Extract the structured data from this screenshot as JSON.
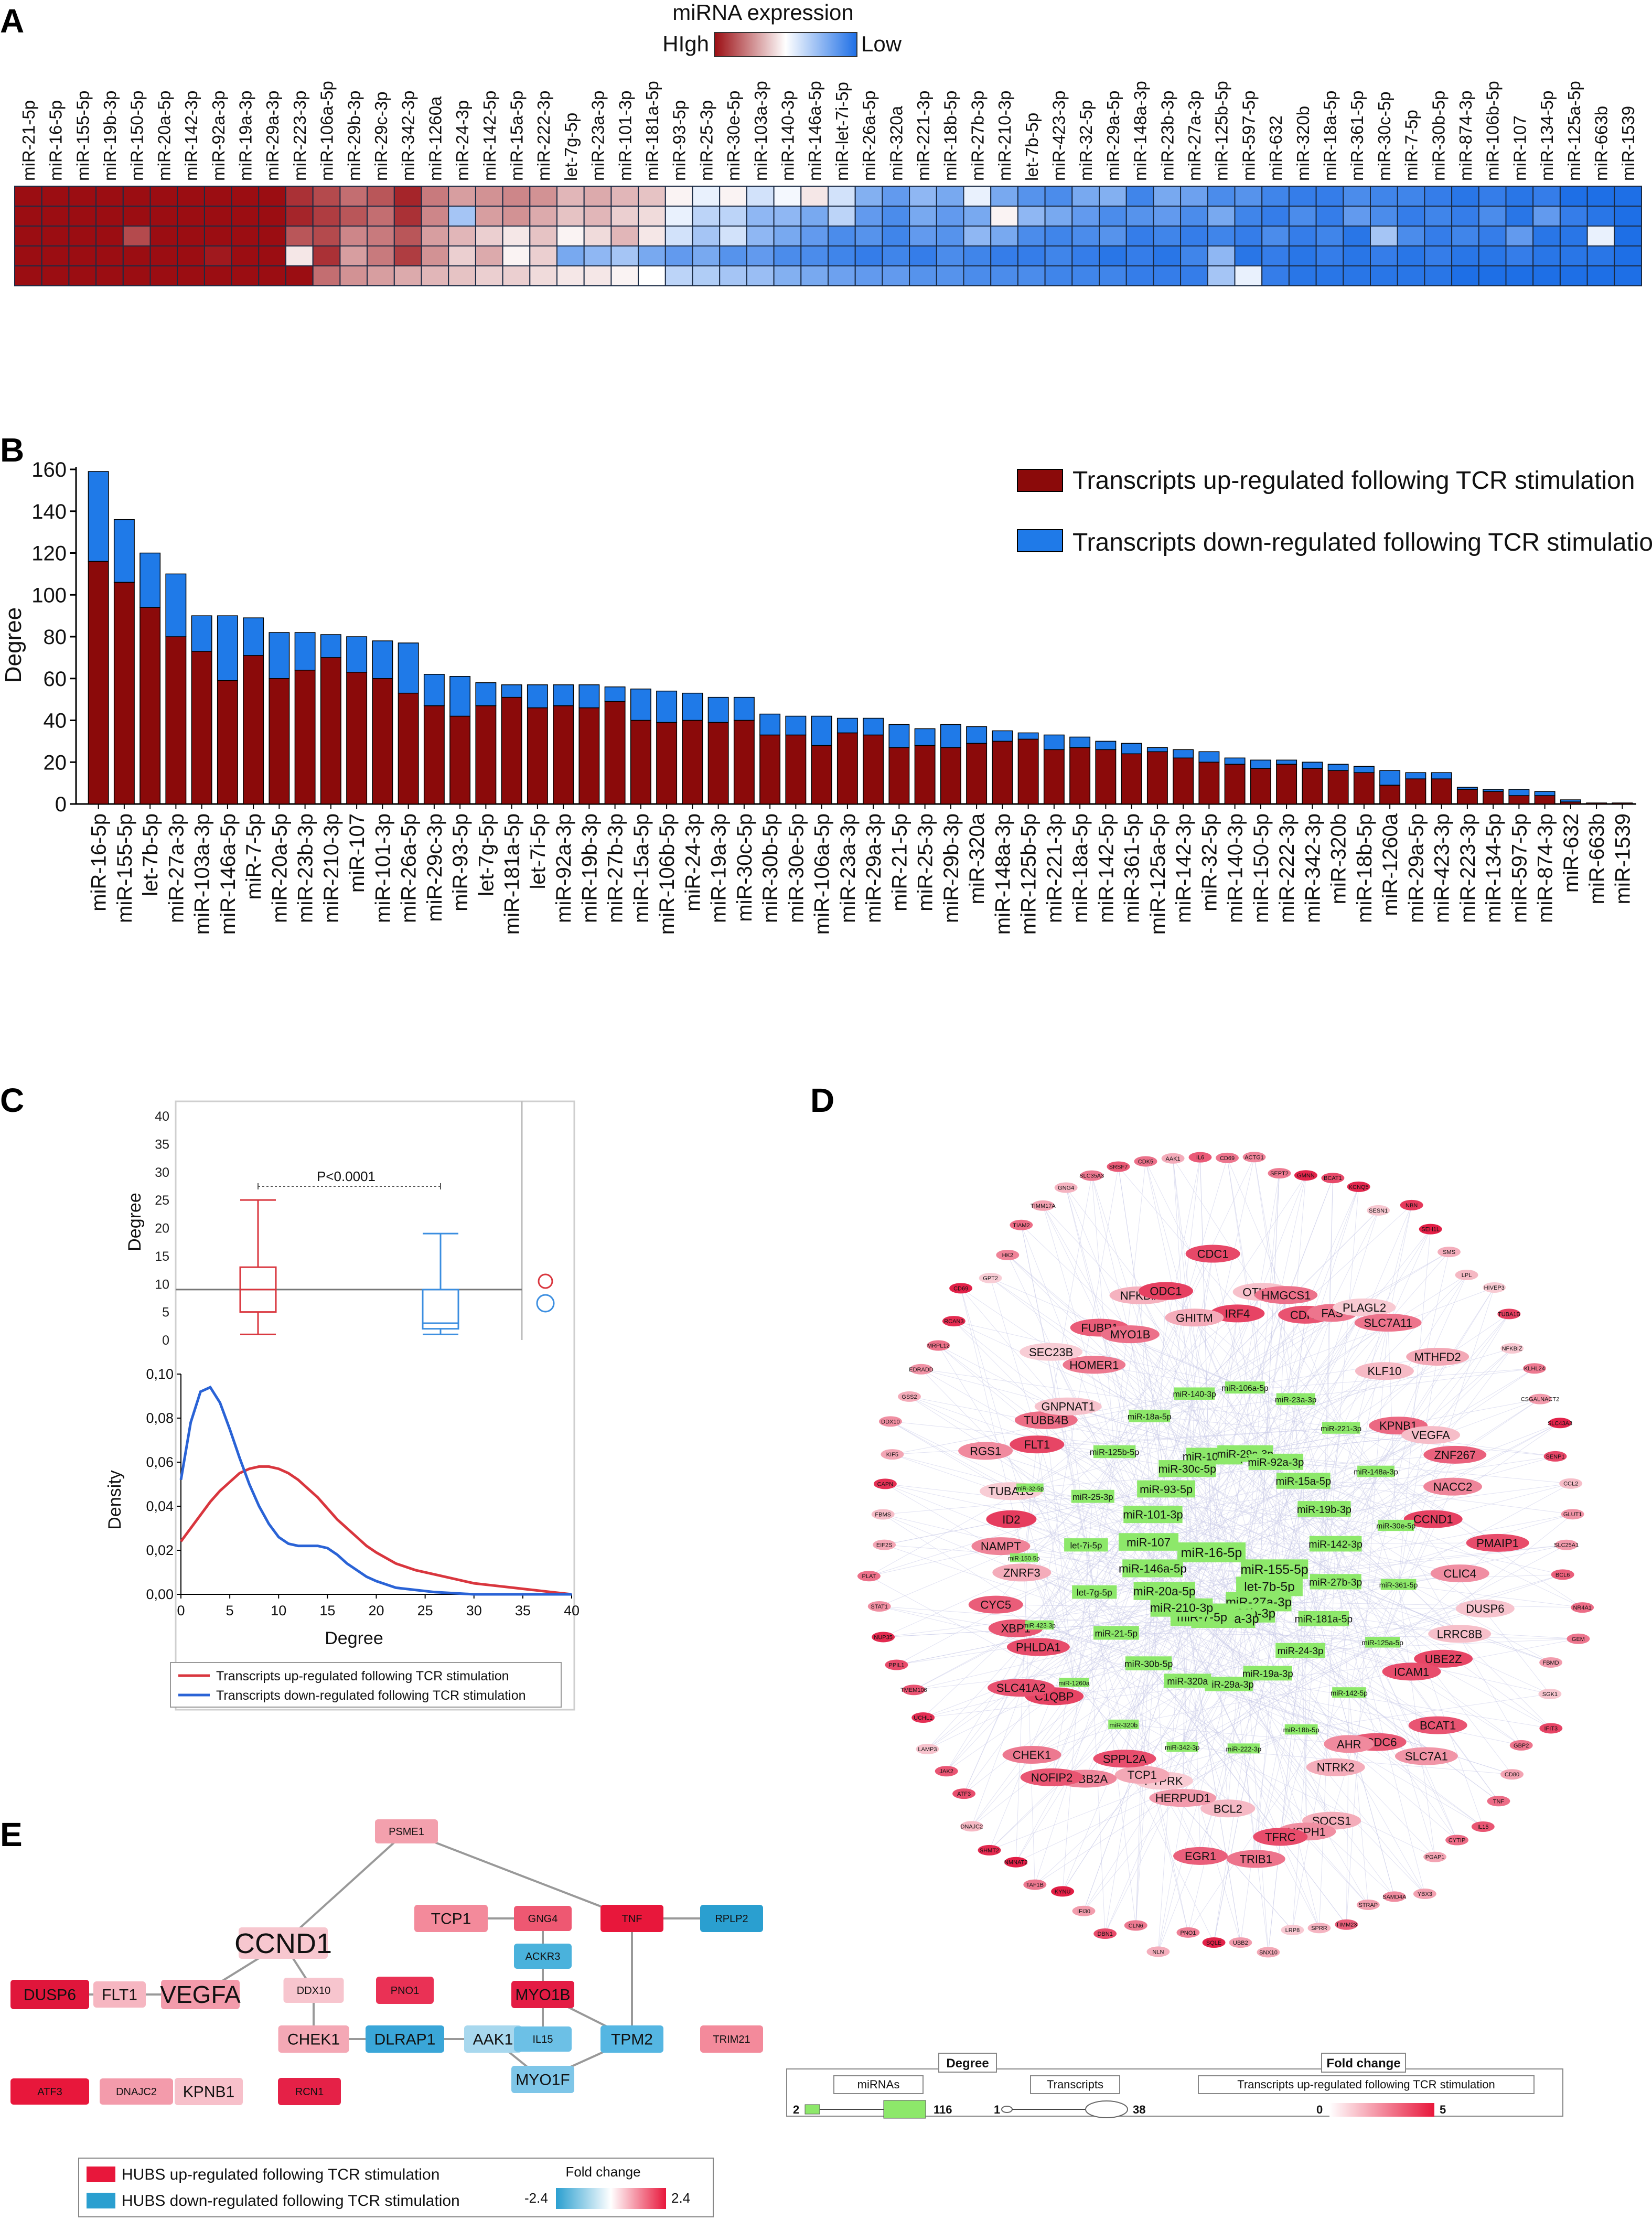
{
  "panels": {
    "a": "A",
    "b": "B",
    "c": "C",
    "d": "D",
    "e": "E"
  },
  "chart_data": [
    {
      "type": "heatmap",
      "panel": "A",
      "title": "miRNA expression",
      "legend_high": "HIgh",
      "legend_low": "Low",
      "colors": {
        "high": "#9b0d12",
        "mid": "#ffffff",
        "low": "#1e6fe6"
      },
      "columns": [
        "miR-21-5p",
        "miR-16-5p",
        "miR-155-5p",
        "miR-19b-3p",
        "miR-150-5p",
        "miR-20a-5p",
        "miR-142-3p",
        "miR-92a-3p",
        "miR-19a-3p",
        "miR-29a-3p",
        "miR-223-3p",
        "miR-106a-5p",
        "miR-29b-3p",
        "miR-29c-3p",
        "miR-342-3p",
        "miR-1260a",
        "miR-24-3p",
        "miR-142-5p",
        "miR-15a-5p",
        "miR-222-3p",
        "let-7g-5p",
        "miR-23a-3p",
        "miR-101-3p",
        "miR-181a-5p",
        "miR-93-5p",
        "miR-25-3p",
        "miR-30e-5p",
        "miR-103a-3p",
        "miR-140-3p",
        "miR-146a-5p",
        "miR-let-7i-5p",
        "miR-26a-5p",
        "miR-320a",
        "miR-221-3p",
        "miR-18b-5p",
        "miR-27b-3p",
        "miR-210-3p",
        "let-7b-5p",
        "miR-423-3p",
        "miR-32-5p",
        "miR-29a-5p",
        "miR-148a-3p",
        "miR-23b-3p",
        "miR-27a-3p",
        "miR-125b-5p",
        "miR-597-5p",
        "miR-632",
        "miR-320b",
        "miR-18a-5p",
        "miR-361-5p",
        "miR-30c-5p",
        "miR-7-5p",
        "miR-30b-5p",
        "miR-874-3p",
        "miR-106b-5p",
        "miR-107",
        "miR-134-5p",
        "miR-125a-5p",
        "miR-663b",
        "miR-1539"
      ],
      "rows": 5,
      "values": [
        [
          1,
          1,
          1,
          1,
          1,
          1,
          1,
          1,
          1,
          1,
          0.85,
          0.75,
          0.6,
          0.7,
          0.9,
          0.55,
          0.4,
          0.45,
          0.5,
          0.45,
          0.3,
          0.35,
          0.3,
          0.25,
          0.05,
          -0.1,
          0.05,
          -0.2,
          -0.05,
          0.1,
          -0.2,
          -0.55,
          -0.7,
          -0.5,
          -0.6,
          -0.1,
          -0.6,
          -0.75,
          -0.8,
          -0.6,
          -0.55,
          -0.85,
          -0.6,
          -0.65,
          -0.8,
          -0.75,
          -0.85,
          -0.9,
          -0.9,
          -0.8,
          -0.85,
          -0.85,
          -0.9,
          -0.95,
          -0.9,
          -0.95,
          -0.9,
          -1,
          -1,
          -1
        ],
        [
          1,
          1,
          1,
          1,
          1,
          1,
          1,
          1,
          1,
          1,
          0.9,
          0.8,
          0.7,
          0.6,
          0.85,
          0.5,
          -0.4,
          0.4,
          0.45,
          0.35,
          0.25,
          0.3,
          0.2,
          0.15,
          -0.1,
          -0.3,
          -0.3,
          -0.5,
          -0.5,
          -0.6,
          -0.3,
          -0.7,
          -0.8,
          -0.6,
          -0.7,
          -0.6,
          0.05,
          -0.5,
          -0.6,
          -0.7,
          -0.8,
          -0.75,
          -0.7,
          -0.8,
          -0.6,
          -0.85,
          -0.9,
          -0.8,
          -0.9,
          -0.7,
          -0.8,
          -0.9,
          -0.85,
          -0.9,
          -0.8,
          -0.95,
          -0.7,
          -0.9,
          -0.95,
          -1
        ],
        [
          1,
          1,
          1,
          1,
          0.75,
          1,
          1,
          1,
          1,
          1,
          0.7,
          0.75,
          0.5,
          0.55,
          0.7,
          0.4,
          0.3,
          0.2,
          0.1,
          0.25,
          0.05,
          0.15,
          0.3,
          0.1,
          -0.2,
          -0.4,
          -0.2,
          -0.5,
          -0.6,
          -0.7,
          -0.8,
          -0.75,
          -0.85,
          -0.7,
          -0.75,
          -0.5,
          -0.6,
          -0.8,
          -0.85,
          -0.8,
          -0.75,
          -0.9,
          -0.85,
          -0.9,
          -0.85,
          -0.9,
          -0.8,
          -0.9,
          -0.85,
          -0.95,
          -0.4,
          -0.8,
          -0.9,
          -0.85,
          -0.9,
          -0.7,
          -0.95,
          -0.95,
          -0.1,
          -1
        ],
        [
          1,
          1,
          1,
          1,
          1,
          1,
          1,
          0.95,
          1,
          1,
          0.1,
          0.85,
          0.4,
          0.55,
          0.8,
          0.45,
          0.2,
          0.35,
          0.05,
          0.2,
          -0.6,
          -0.5,
          -0.4,
          -0.6,
          -0.7,
          -0.6,
          -0.75,
          -0.7,
          -0.8,
          -0.8,
          -0.85,
          -0.9,
          -0.85,
          -0.9,
          -0.8,
          -0.85,
          -0.9,
          -0.9,
          -0.85,
          -0.9,
          -0.95,
          -0.9,
          -0.95,
          -0.85,
          -0.5,
          -0.95,
          -0.9,
          -0.95,
          -0.9,
          -0.95,
          -0.9,
          -0.95,
          -0.9,
          -0.95,
          -0.95,
          -0.9,
          -0.95,
          -0.95,
          -0.95,
          -1
        ],
        [
          1,
          1,
          1,
          1,
          1,
          1,
          1,
          1,
          1,
          1,
          1,
          0.6,
          0.45,
          0.4,
          0.35,
          0.3,
          0.25,
          0.2,
          0.2,
          0.15,
          0.1,
          0.1,
          0.05,
          0,
          -0.3,
          -0.35,
          -0.4,
          -0.45,
          -0.55,
          -0.6,
          -0.65,
          -0.7,
          -0.7,
          -0.75,
          -0.75,
          -0.8,
          -0.8,
          -0.8,
          -0.85,
          -0.85,
          -0.85,
          -0.9,
          -0.9,
          -0.9,
          -0.4,
          -0.1,
          -0.9,
          -0.95,
          -0.95,
          -0.95,
          -0.95,
          -0.95,
          -0.95,
          -1,
          -1,
          -1,
          -1,
          -1,
          -1,
          -1
        ]
      ]
    },
    {
      "type": "bar",
      "panel": "B",
      "stacked": true,
      "ylabel": "Degree",
      "ylim": [
        0,
        160
      ],
      "yticks": [
        0,
        20,
        40,
        60,
        80,
        100,
        120,
        140,
        160
      ],
      "legend": [
        "Transcripts up-regulated following TCR stimulation",
        "Transcripts down-regulated following TCR stimulation"
      ],
      "legend_position": "top-right",
      "categories": [
        "miR-16-5p",
        "miR-155-5p",
        "let-7b-5p",
        "miR-27a-3p",
        "miR-103a-3p",
        "miR-146a-5p",
        "miR-7-5p",
        "miR-20a-5p",
        "miR-23b-3p",
        "miR-210-3p",
        "miR-107",
        "miR-101-3p",
        "miR-26a-5p",
        "miR-29c-3p",
        "miR-93-5p",
        "let-7g-5p",
        "miR-181a-5p",
        "let-7i-5p",
        "miR-92a-3p",
        "miR-19b-3p",
        "miR-27b-3p",
        "miR-15a-5p",
        "miR-106b-5p",
        "miR-24-3p",
        "miR-19a-3p",
        "miR-30c-5p",
        "miR-30b-5p",
        "miR-30e-5p",
        "miR-106a-5p",
        "miR-23a-3p",
        "miR-29a-3p",
        "miR-21-5p",
        "miR-25-3p",
        "miR-29b-3p",
        "miR-320a",
        "miR-148a-3p",
        "miR-125b-5p",
        "miR-221-3p",
        "miR-18a-5p",
        "miR-142-5p",
        "miR-361-5p",
        "miR-125a-5p",
        "miR-142-3p",
        "miR-32-5p",
        "miR-140-3p",
        "miR-150-5p",
        "miR-222-3p",
        "miR-342-3p",
        "miR-320b",
        "miR-18b-5p",
        "miR-1260a",
        "miR-29a-5p",
        "miR-423-3p",
        "miR-223-3p",
        "miR-134-5p",
        "miR-597-5p",
        "miR-874-3p",
        "miR-632",
        "miR-663b",
        "miR-1539"
      ],
      "series": [
        {
          "name": "Transcripts up-regulated following TCR stimulation",
          "color": "#8b0a0a",
          "values": [
            116,
            106,
            94,
            80,
            73,
            59,
            71,
            60,
            64,
            70,
            63,
            60,
            53,
            47,
            42,
            47,
            51,
            46,
            47,
            46,
            49,
            40,
            39,
            40,
            39,
            40,
            33,
            33,
            28,
            34,
            33,
            27,
            28,
            27,
            29,
            30,
            31,
            26,
            27,
            26,
            24,
            25,
            22,
            20,
            19,
            17,
            19,
            17,
            16,
            15,
            9,
            12,
            12,
            7,
            6,
            4,
            4,
            1,
            0.5,
            0.5
          ]
        },
        {
          "name": "Transcripts down-regulated following TCR stimulation",
          "color": "#1f7ae8",
          "values": [
            43,
            30,
            26,
            30,
            17,
            31,
            18,
            22,
            18,
            11,
            17,
            18,
            24,
            15,
            19,
            11,
            6,
            11,
            10,
            11,
            7,
            15,
            15,
            13,
            12,
            11,
            10,
            9,
            14,
            7,
            8,
            11,
            8,
            11,
            8,
            5,
            3,
            7,
            5,
            4,
            5,
            2,
            4,
            5,
            3,
            4,
            2,
            3,
            3,
            3,
            7,
            3,
            3,
            1,
            1,
            3,
            2,
            1,
            0,
            0
          ]
        }
      ]
    },
    {
      "type": "scatter",
      "panel": "C-box",
      "ylabel": "Degree",
      "ylim": [
        0,
        40
      ],
      "yticks": [
        0,
        5,
        10,
        15,
        20,
        25,
        30,
        35,
        40
      ],
      "pvalue": "P<0.0001",
      "median_line": 9,
      "boxes": [
        {
          "name": "up",
          "color": "#d9363e",
          "min": 1,
          "q1": 5,
          "median": 9,
          "q3": 13,
          "max": 25
        },
        {
          "name": "down",
          "color": "#3b8ee0",
          "min": 1,
          "q1": 2,
          "median": 3,
          "q3": 9,
          "max": 19
        }
      ]
    },
    {
      "type": "line",
      "panel": "C-density",
      "xlabel": "Degree",
      "ylabel": "Density",
      "xlim": [
        0,
        40
      ],
      "ylim": [
        0,
        0.1
      ],
      "xticks": [
        0,
        5,
        10,
        15,
        20,
        25,
        30,
        35,
        40
      ],
      "ytick_labels": [
        "0,00",
        "0,02",
        "0,04",
        "0,06",
        "0,08",
        "0,10"
      ],
      "yticks": [
        0,
        0.02,
        0.04,
        0.06,
        0.08,
        0.1
      ],
      "legend": [
        "Transcripts up-regulated following TCR stimulation",
        "Transcripts down-regulated following TCR stimulation"
      ],
      "x": [
        0,
        1,
        2,
        3,
        4,
        5,
        6,
        7,
        8,
        9,
        10,
        11,
        12,
        13,
        14,
        15,
        16,
        17,
        18,
        19,
        20,
        22,
        24,
        26,
        28,
        30,
        32,
        34,
        36,
        38,
        40
      ],
      "series": [
        {
          "name": "up",
          "color": "#d9363e",
          "values": [
            0.024,
            0.03,
            0.036,
            0.042,
            0.047,
            0.051,
            0.055,
            0.057,
            0.058,
            0.058,
            0.057,
            0.055,
            0.052,
            0.048,
            0.044,
            0.039,
            0.034,
            0.03,
            0.026,
            0.022,
            0.019,
            0.014,
            0.011,
            0.009,
            0.007,
            0.005,
            0.004,
            0.003,
            0.002,
            0.001,
            0.0
          ]
        },
        {
          "name": "down",
          "color": "#2a63d6",
          "values": [
            0.052,
            0.078,
            0.092,
            0.094,
            0.087,
            0.075,
            0.062,
            0.05,
            0.04,
            0.032,
            0.026,
            0.023,
            0.022,
            0.022,
            0.022,
            0.021,
            0.018,
            0.014,
            0.011,
            0.008,
            0.006,
            0.003,
            0.002,
            0.001,
            0.0005,
            0.0,
            0.0,
            0.0,
            0.0,
            0.0,
            0.0
          ]
        }
      ]
    }
  ],
  "network_d": {
    "mirnas": [
      "miR-16-5p",
      "miR-155-5p",
      "let-7b-5p",
      "miR-27a-3p",
      "miR-23b-3p",
      "miR-103a-3p",
      "miR-7-5p",
      "miR-210-3p",
      "miR-20a-5p",
      "miR-146a-5p",
      "miR-107",
      "miR-101-3p",
      "miR-93-5p",
      "miR-30c-5p",
      "miR-106b-5p",
      "miR-29c-3p",
      "miR-92a-3p",
      "miR-15a-5p",
      "miR-19b-3p",
      "miR-142-3p",
      "miR-27b-3p",
      "miR-181a-5p",
      "miR-24-3p",
      "miR-19a-3p",
      "miR-29a-3p",
      "miR-320a",
      "miR-30b-5p",
      "miR-21-5p",
      "let-7g-5p",
      "let-7i-5p",
      "miR-25-3p",
      "miR-125b-5p",
      "miR-18a-5p",
      "miR-140-3p",
      "miR-106a-5p",
      "miR-23a-3p",
      "miR-221-3p",
      "miR-148a-3p",
      "miR-30e-5p",
      "miR-361-5p",
      "miR-125a-5p",
      "miR-142-5p",
      "miR-18b-5p",
      "miR-222-3p",
      "miR-342-3p",
      "miR-320b",
      "miR-1260a",
      "miR-423-3p",
      "miR-150-5p",
      "miR-32-5p"
    ],
    "transcripts_big": [
      "IRF4",
      "OTUD4",
      "HMGCS1",
      "CDK6",
      "FAS",
      "PLAGL2",
      "SLC7A11",
      "KLF10",
      "MTHFD2",
      "KPNB1",
      "VEGFA",
      "ZNF267",
      "NACC2",
      "CCND1",
      "PMAIP1",
      "CLIC4",
      "DUSP6",
      "LRRC8B",
      "UBE2Z",
      "ICAM1",
      "BCAT1",
      "SLC7A1",
      "CCDC6",
      "AHR",
      "NTRK2",
      "SOCS1",
      "HSPH1",
      "TFRC",
      "TRIB1",
      "BCL2",
      "EGR1",
      "HERPUD1",
      "PTPRK",
      "TCP1",
      "SPPL2A",
      "TUBB2A",
      "NOFIP2",
      "CHEK1",
      "C1QBP",
      "SLC41A2",
      "PHLDA1",
      "XBP1",
      "CYC5",
      "ZNRF3",
      "NAMPT",
      "ID2",
      "TUBA1C",
      "RGS1",
      "FLT1",
      "TUBB4B",
      "GNPNAT1",
      "SEC23B",
      "HOMER1",
      "FUBP1",
      "MYO1B",
      "NFKBIA",
      "ODC1",
      "GHITM",
      "CDC1"
    ],
    "transcripts_small": [
      "CD69",
      "ACTG1",
      "SEPT2",
      "GMNN",
      "BCAT1",
      "KCNQ5",
      "SESN1",
      "NBN",
      "SEH1L",
      "SMS",
      "LPL",
      "HIVEP3",
      "TUBA1B",
      "NFKBIZ",
      "KLHL24",
      "CSGALNACT2",
      "SLC43A3",
      "SENP1",
      "CCL2",
      "GLUT1",
      "SLC25A1",
      "BCL6",
      "NR4A1",
      "GEM",
      "FBMD",
      "SGK1",
      "IFIT3",
      "GBP2",
      "CD80",
      "TNF",
      "IL15",
      "CYTIP",
      "PGAP1",
      "YBX3",
      "SAMD4A",
      "STRAP",
      "TIMM23",
      "SPRR",
      "LRP8",
      "SNX10",
      "UBB2",
      "SQLE",
      "PNO1",
      "NLN",
      "CLN6",
      "DBN1",
      "IFI30",
      "KYNU",
      "TAF1B",
      "NMNAT2",
      "SHMT2",
      "DNAJC2",
      "ATF3",
      "JAK2",
      "LAMP3",
      "UCHL1",
      "TMEM106",
      "PPIL1",
      "NUP35",
      "STAT1",
      "PLAT",
      "EIF2S",
      "FBMS",
      "CAPN",
      "KIF5",
      "DDX10",
      "GSS2",
      "EDRADD",
      "MRPL12",
      "RCAN3",
      "CD69",
      "GPT2",
      "HK2",
      "TIAM2",
      "TIMM17A",
      "GNG4",
      "SLC35A3",
      "SRSF7",
      "CDK5",
      "AAK1",
      "IL6"
    ],
    "legend": {
      "degree_title": "Degree",
      "fold_title": "Fold change",
      "mirnas_label": "miRNAs",
      "transcripts_label": "Transcripts",
      "fold_subtitle": "Transcripts up-regulated following TCR stimulation",
      "mir_min": "2",
      "mir_max": "116",
      "tr_min": "1",
      "tr_max": "38",
      "fc_min": "0",
      "fc_max": "5"
    }
  },
  "network_e": {
    "nodes": [
      {
        "id": "psme1",
        "label": "PSME1",
        "color": "#f3a0ad"
      },
      {
        "id": "ccnd1",
        "label": "CCND1",
        "color": "#f7c7cf"
      },
      {
        "id": "tcp1",
        "label": "TCP1",
        "color": "#f38a9b"
      },
      {
        "id": "gng4",
        "label": "GNG4",
        "color": "#ee5872"
      },
      {
        "id": "tnf",
        "label": "TNF",
        "color": "#e8173b"
      },
      {
        "id": "rplp2",
        "label": "RPLP2",
        "color": "#2a9fd0"
      },
      {
        "id": "ackr3",
        "label": "ACKR3",
        "color": "#4ab2dc"
      },
      {
        "id": "dusp6",
        "label": "DUSP6",
        "color": "#e0163b"
      },
      {
        "id": "flt1",
        "label": "FLT1",
        "color": "#f6b6c1"
      },
      {
        "id": "vegfa",
        "label": "VEGFA",
        "color": "#f39bab"
      },
      {
        "id": "ddx10",
        "label": "DDX10",
        "color": "#f7c5ce"
      },
      {
        "id": "pno1",
        "label": "PNO1",
        "color": "#ea3155"
      },
      {
        "id": "myo1b",
        "label": "MYO1B",
        "color": "#e41c44"
      },
      {
        "id": "chek1",
        "label": "CHEK1",
        "color": "#f4a8b5"
      },
      {
        "id": "dlrap1",
        "label": "DLRAP1",
        "color": "#3aa6d8"
      },
      {
        "id": "aak1",
        "label": "AAK1",
        "color": "#a8d8ee"
      },
      {
        "id": "il15",
        "label": "IL15",
        "color": "#6cc0e6"
      },
      {
        "id": "tpm2",
        "label": "TPM2",
        "color": "#55b6e2"
      },
      {
        "id": "trim21",
        "label": "TRIM21",
        "color": "#f38a9b"
      },
      {
        "id": "myo1f",
        "label": "MYO1F",
        "color": "#7ec6e8"
      },
      {
        "id": "atf3",
        "label": "ATF3",
        "color": "#e8173b"
      },
      {
        "id": "dnajc2",
        "label": "DNAJC2",
        "color": "#f39bab"
      },
      {
        "id": "kpnb1",
        "label": "KPNB1",
        "color": "#f7c0ca"
      },
      {
        "id": "rcn1",
        "label": "RCN1",
        "color": "#e52147"
      }
    ],
    "legend": {
      "up": "HUBS up-regulated following TCR stimulation",
      "down": "HUBS down-regulated following TCR stimulation",
      "fold_title": "Fold change",
      "fc_min": "-2.4",
      "fc_max": "2.4",
      "up_color": "#e8173b",
      "down_color": "#2a9fd0"
    }
  }
}
